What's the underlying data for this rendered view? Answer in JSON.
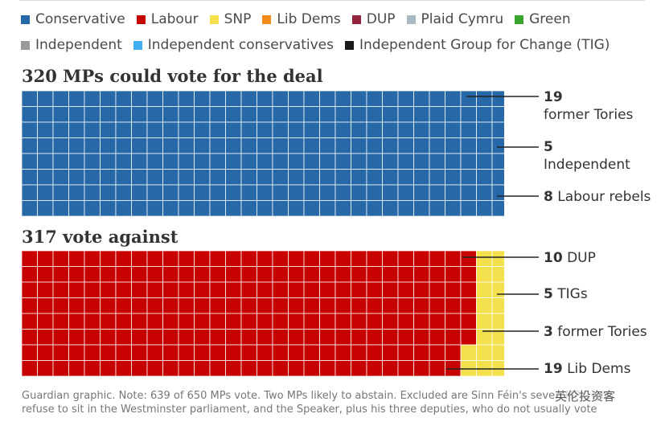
{
  "legend": [
    {
      "key": "conservative",
      "label": "Conservative",
      "color": "#2769a8"
    },
    {
      "key": "labour",
      "label": "Labour",
      "color": "#c70000"
    },
    {
      "key": "snp",
      "label": "SNP",
      "color": "#f4e04d"
    },
    {
      "key": "libdem",
      "label": "Lib Dems",
      "color": "#f38b1b"
    },
    {
      "key": "dup",
      "label": "DUP",
      "color": "#93243c"
    },
    {
      "key": "plaid",
      "label": "Plaid Cymru",
      "color": "#a9bac4"
    },
    {
      "key": "green",
      "label": "Green",
      "color": "#3aa52d"
    },
    {
      "key": "independent",
      "label": "Independent",
      "color": "#999999"
    },
    {
      "key": "indcons",
      "label": "Independent conservatives",
      "color": "#43adf2"
    },
    {
      "key": "tig",
      "label": "Independent Group for Change (TIG)",
      "color": "#1a1a1a"
    }
  ],
  "sections": {
    "for_title": "320 MPs could vote for the deal",
    "against_title": "317 vote against"
  },
  "annotations": {
    "for": [
      {
        "num": "19",
        "text": "",
        "line2": "former Tories"
      },
      {
        "num": "5",
        "text": "",
        "line2": "Independent"
      },
      {
        "num": "8",
        "text": " Labour rebels",
        "line2": ""
      }
    ],
    "against": [
      {
        "num": "10",
        "text": " DUP"
      },
      {
        "num": "5",
        "text": " TIGs"
      },
      {
        "num": "3",
        "text": " former Tories"
      },
      {
        "num": "19",
        "text": " Lib Dems"
      }
    ]
  },
  "note": {
    "line1": "Guardian graphic. Note: 639 of 650 MPs vote. Two MPs likely to abstain. Excluded are Sinn Féin's seven MPs, who",
    "line2": "refuse to sit in the Westminster parliament, and the Speaker, plus his three deputies, who do not usually vote"
  },
  "watermark": "英伦投资客",
  "chart_data": [
    {
      "type": "waffle",
      "title": "320 MPs could vote for the deal",
      "rows": 8,
      "total": 320,
      "series": [
        {
          "name": "Conservative",
          "value": 279
        },
        {
          "name": "Independent conservatives",
          "value": 19
        },
        {
          "name": "Labour",
          "value": 9
        },
        {
          "name": "Independent",
          "value": 5
        },
        {
          "name": "Labour",
          "value": 8
        }
      ]
    },
    {
      "type": "waffle",
      "title": "317 vote against",
      "rows": 8,
      "total": 317,
      "series": [
        {
          "name": "Labour",
          "value": 230
        },
        {
          "name": "SNP",
          "value": 35
        },
        {
          "name": "Lib Dems",
          "value": 19
        },
        {
          "name": "DUP",
          "value": 10
        },
        {
          "name": "Plaid Cymru",
          "value": 4
        },
        {
          "name": "Independent Group for Change (TIG)",
          "value": 5
        },
        {
          "name": "Green",
          "value": 1
        },
        {
          "name": "Independent",
          "value": 10
        },
        {
          "name": "Independent conservatives",
          "value": 3
        }
      ]
    }
  ]
}
